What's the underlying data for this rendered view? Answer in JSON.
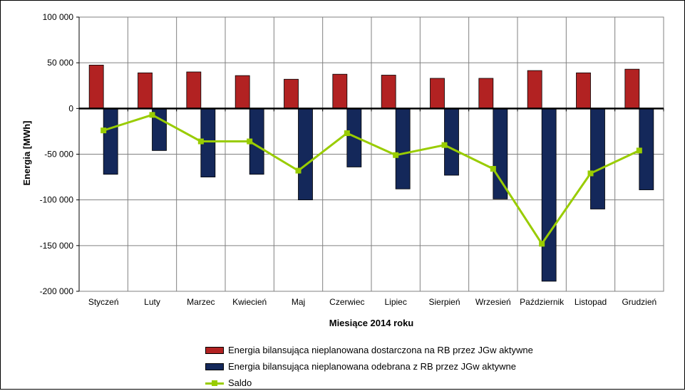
{
  "chart_data": {
    "type": "bar",
    "xlabel": "Miesiące 2014 roku",
    "ylabel": "Energia [MWh]",
    "ylim": [
      -200000,
      100000
    ],
    "yticks": [
      100000,
      50000,
      0,
      -50000,
      -100000,
      -150000,
      -200000
    ],
    "ytick_labels": [
      "100 000",
      "50 000",
      "0",
      "-50 000",
      "-100 000",
      "-150 000",
      "-200 000"
    ],
    "grid": true,
    "legend_position": "bottom",
    "categories": [
      "Styczeń",
      "Luty",
      "Marzec",
      "Kwiecień",
      "Maj",
      "Czerwiec",
      "Lipiec",
      "Sierpień",
      "Wrzesień",
      "Październik",
      "Listopad",
      "Grudzień"
    ],
    "series": [
      {
        "name": "Energia bilansująca nieplanowana dostarczona na RB przez JGw aktywne",
        "type": "bar",
        "color": "#b22222",
        "values": [
          47500,
          39000,
          40000,
          36000,
          32000,
          37500,
          36500,
          33000,
          33000,
          41500,
          39000,
          43000
        ]
      },
      {
        "name": "Energia bilansująca nieplanowana odebrana z RB przez JGw aktywne",
        "type": "bar",
        "color": "#14285a",
        "values": [
          -72000,
          -46000,
          -75000,
          -72000,
          -100000,
          -64000,
          -88000,
          -73000,
          -99000,
          -189000,
          -110000,
          -89000
        ]
      },
      {
        "name": "Saldo",
        "type": "line",
        "color": "#99cc00",
        "values": [
          -24000,
          -7000,
          -36000,
          -36000,
          -68000,
          -27000,
          -51000,
          -40000,
          -66000,
          -148000,
          -71000,
          -46000
        ]
      }
    ]
  }
}
